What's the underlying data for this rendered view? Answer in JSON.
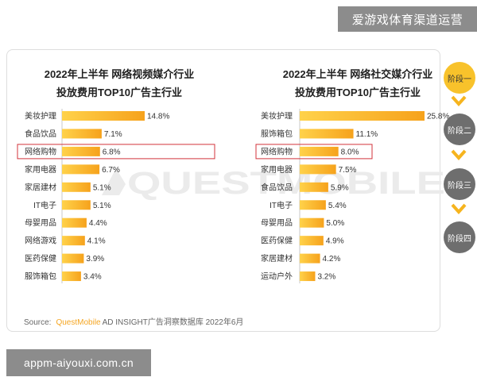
{
  "banner_top": "爱游戏体育渠道运营",
  "banner_bottom": "appm-aiyouxi.com.cn",
  "watermark": "QUESTMOBILE",
  "colors": {
    "bar_start": "#FFD24A",
    "bar_end": "#F6A21C",
    "highlight": "#D3333B",
    "stage_active": "#F8C22B",
    "stage_active_text": "#333333",
    "stage_inactive": "#6E6E6E",
    "stage_inactive_text": "#FFFFFF",
    "arrow": "#F6B41E",
    "banner": "#8C8C8C",
    "source_brand": "#F5A623",
    "watermark": "#EBEBEB"
  },
  "stages": [
    {
      "label": "阶段一",
      "active": true
    },
    {
      "label": "阶段二",
      "active": false
    },
    {
      "label": "阶段三",
      "active": false
    },
    {
      "label": "阶段四",
      "active": false
    }
  ],
  "source": {
    "prefix": "Source:",
    "brand": "QuestMobile",
    "text": "AD INSIGHT广告洞察数据库 2022年6月"
  },
  "chart_data": [
    {
      "type": "bar",
      "orientation": "horizontal",
      "title_lines": [
        "2022年上半年 网络视频媒介行业",
        "投放费用TOP10广告主行业"
      ],
      "categories": [
        "美妆护理",
        "食品饮品",
        "网络购物",
        "家用电器",
        "家居建材",
        "IT电子",
        "母婴用品",
        "网络游戏",
        "医药保健",
        "服饰箱包"
      ],
      "values": [
        14.8,
        7.1,
        6.8,
        6.7,
        5.1,
        5.1,
        4.4,
        4.1,
        3.9,
        3.4
      ],
      "data_labels": [
        "14.8%",
        "7.1%",
        "6.8%",
        "6.7%",
        "5.1%",
        "5.1%",
        "4.4%",
        "4.1%",
        "3.9%",
        "3.4%"
      ],
      "highlight_category": "网络购物",
      "grid": false
    },
    {
      "type": "bar",
      "orientation": "horizontal",
      "title_lines": [
        "2022年上半年 网络社交媒介行业",
        "投放费用TOP10广告主行业"
      ],
      "categories": [
        "美妆护理",
        "服饰箱包",
        "网络购物",
        "家用电器",
        "食品饮品",
        "IT电子",
        "母婴用品",
        "医药保健",
        "家居建材",
        "运动户外"
      ],
      "values": [
        25.8,
        11.1,
        8.0,
        7.5,
        5.9,
        5.4,
        5.0,
        4.9,
        4.2,
        3.2
      ],
      "data_labels": [
        "25.8%",
        "11.1%",
        "8.0%",
        "7.5%",
        "5.9%",
        "5.4%",
        "5.0%",
        "4.9%",
        "4.2%",
        "3.2%"
      ],
      "highlight_category": "网络购物",
      "grid": false
    }
  ]
}
